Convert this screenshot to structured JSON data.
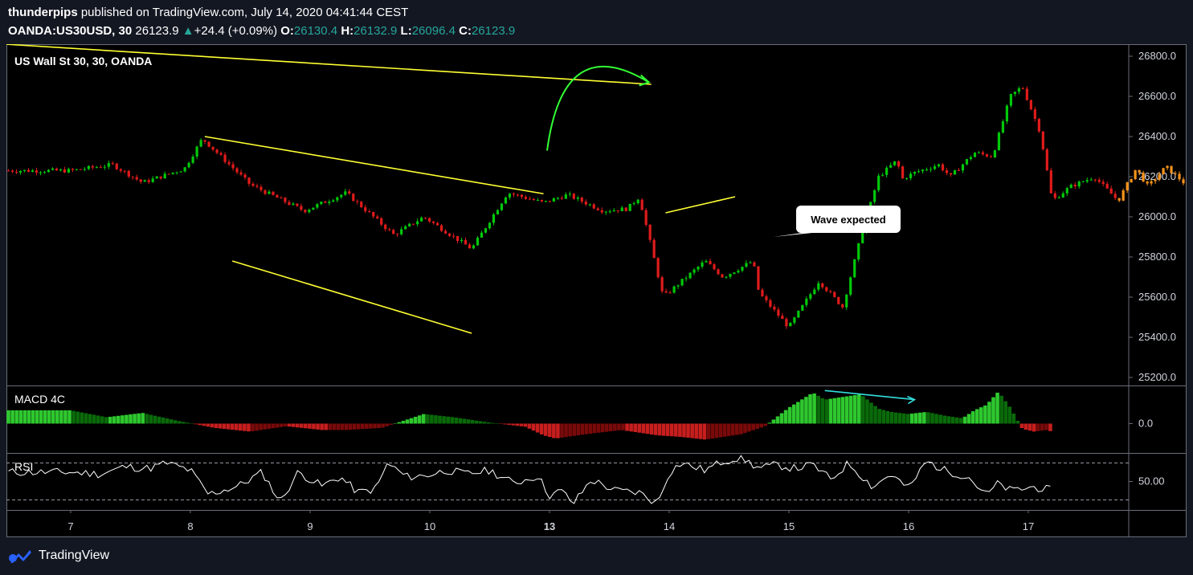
{
  "header": {
    "author": "thunderpips",
    "published_text": "published on TradingView.com, July 14, 2020 04:41:44 CEST",
    "symbol": "OANDA:US30USD, 30",
    "last": "26123.9",
    "change_arrow": "▲",
    "change": "+24.4 (+0.09%)",
    "o_label": "O:",
    "o_value": "26130.4",
    "h_label": "H:",
    "h_value": "26132.9",
    "l_label": "L:",
    "l_value": "26096.4",
    "c_label": "C:",
    "c_value": "26123.9"
  },
  "footer": {
    "brand": "TradingView",
    "logo_icon": "tradingview-logo-icon"
  },
  "colors": {
    "up": "#26a69a",
    "bull_candle": "#00c80a",
    "bear_candle": "#e01b1b",
    "projection": "#f7931a",
    "trendline": "#ffff33",
    "arc": "#33ff33",
    "divergence": "#33dddd",
    "rsi_line": "#ffffff"
  },
  "chart_data": [
    {
      "type": "candlestick",
      "title": "US Wall St 30, 30, OANDA",
      "y_ticks": [
        "26800.0",
        "26600.0",
        "26400.0",
        "26200.0",
        "26000.0",
        "25800.0",
        "25600.0",
        "25400.0",
        "25200.0"
      ],
      "ylim": [
        25160,
        26860
      ],
      "x_ticks": [
        "7",
        "8",
        "9",
        "10",
        "13",
        "14",
        "15",
        "16",
        "17"
      ],
      "close_path": {
        "x": [
          0,
          0.35,
          0.6,
          0.95,
          1.1,
          1.5,
          1.95,
          2.3,
          2.7,
          2.95,
          3.35,
          3.65,
          3.95,
          4.15,
          4.45,
          4.65,
          4.75,
          4.95,
          5.3,
          5.45,
          5.7,
          5.75,
          6.0,
          6.25,
          6.45,
          6.6,
          6.75,
          6.9,
          6.95,
          7.05,
          7.25,
          7.35,
          7.55,
          7.7,
          7.85,
          7.95,
          8.1,
          8.2,
          8.35,
          8.55,
          8.75,
          8.9,
          9.0,
          9.15,
          9.3,
          9.45,
          9.6,
          9.75,
          9.9,
          10.1,
          10.25
        ],
        "y": [
          26230,
          26260,
          26170,
          26240,
          26390,
          26160,
          26030,
          26120,
          25910,
          26000,
          25840,
          26120,
          26070,
          26110,
          26030,
          26040,
          26100,
          25600,
          25780,
          25700,
          25780,
          25620,
          25450,
          25680,
          25550,
          25900,
          26200,
          26280,
          26190,
          26220,
          26260,
          26200,
          26320,
          26300,
          26600,
          26650,
          26420,
          26080,
          26150,
          26200,
          26080,
          26240,
          26150,
          26250,
          26170,
          26100,
          26020,
          25900,
          25700,
          25560,
          25470
        ]
      },
      "projection_start_index": 40,
      "annotations": [
        {
          "type": "trendline",
          "from": [
            -0.55,
            26860
          ],
          "to": [
            4.85,
            26660
          ]
        },
        {
          "type": "trendline",
          "from": [
            1.12,
            26400
          ],
          "to": [
            3.95,
            26115
          ]
        },
        {
          "type": "trendline",
          "from": [
            1.35,
            25780
          ],
          "to": [
            3.35,
            25420
          ]
        },
        {
          "type": "trendline",
          "from": [
            4.97,
            26020
          ],
          "to": [
            5.55,
            26100
          ]
        },
        {
          "type": "arc",
          "from": [
            3.98,
            26330
          ],
          "to": [
            4.83,
            26670
          ]
        },
        {
          "type": "callout",
          "text": "Wave expected",
          "at": [
            5.87,
            26000
          ]
        }
      ]
    },
    {
      "type": "histogram",
      "title": "MACD 4C",
      "y_ticks": [
        "0.0"
      ],
      "ylim": [
        -55,
        70
      ],
      "x": [
        0,
        0.3,
        0.6,
        0.9,
        1.2,
        1.5,
        1.8,
        2.1,
        2.3,
        2.6,
        2.95,
        3.2,
        3.5,
        3.8,
        3.95,
        4.05,
        4.3,
        4.6,
        4.9,
        5.1,
        5.3,
        5.6,
        5.8,
        6.0,
        6.2,
        6.3,
        6.45,
        6.6,
        6.75,
        6.85,
        7.0,
        7.15,
        7.3,
        7.45,
        7.55,
        7.65,
        7.75,
        7.85,
        7.95,
        8.05,
        8.15,
        8.2
      ],
      "values": [
        25,
        12,
        20,
        5,
        -8,
        -15,
        -5,
        -12,
        -12,
        -8,
        18,
        12,
        2,
        -6,
        -22,
        -28,
        -20,
        -12,
        -22,
        -25,
        -30,
        -20,
        -5,
        30,
        58,
        45,
        50,
        55,
        28,
        22,
        18,
        22,
        15,
        10,
        25,
        35,
        60,
        30,
        -10,
        -15,
        -12,
        -15
      ],
      "annotations": [
        {
          "type": "divergence",
          "from": [
            6.3,
            62
          ],
          "to": [
            7.05,
            45
          ]
        }
      ]
    },
    {
      "type": "line",
      "title": "RSI",
      "y_ticks": [
        "50.00"
      ],
      "ylim": [
        20,
        80
      ],
      "band": [
        30,
        70
      ],
      "x": [
        0,
        0.25,
        0.45,
        0.65,
        0.8,
        1.0,
        1.15,
        1.4,
        1.6,
        1.75,
        1.9,
        2.1,
        2.25,
        2.4,
        2.55,
        2.65,
        2.8,
        2.95,
        3.15,
        3.3,
        3.5,
        3.7,
        3.9,
        4.0,
        4.1,
        4.2,
        4.35,
        4.55,
        4.75,
        4.9,
        5.0,
        5.1,
        5.3,
        5.45,
        5.6,
        5.75,
        5.9,
        6.05,
        6.2,
        6.35,
        6.5,
        6.7,
        6.85,
        7.0,
        7.15,
        7.3,
        7.5,
        7.65,
        7.75,
        7.85,
        7.95,
        8.05,
        8.2
      ],
      "values": [
        60,
        58,
        66,
        64,
        70,
        62,
        36,
        45,
        60,
        28,
        60,
        45,
        55,
        38,
        42,
        70,
        55,
        56,
        62,
        58,
        62,
        48,
        56,
        35,
        40,
        26,
        52,
        40,
        38,
        26,
        60,
        70,
        62,
        72,
        76,
        64,
        68,
        64,
        68,
        52,
        70,
        44,
        58,
        42,
        72,
        62,
        55,
        35,
        48,
        40,
        42,
        44,
        40
      ],
      "annotations": []
    }
  ]
}
